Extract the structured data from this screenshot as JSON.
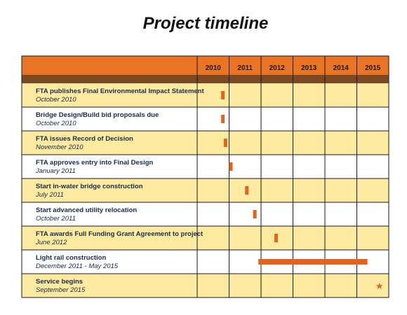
{
  "title": "Project timeline",
  "colors": {
    "header_orange": "#e97424",
    "header_brown": "#7b4a22",
    "row_highlight": "#feeba0",
    "row_plain": "#ffffff",
    "bar": "#e2641c",
    "grid": "#1a1a1a"
  },
  "chart_data": {
    "type": "table",
    "subtype": "gantt",
    "title": "Project timeline",
    "columns": [
      "2010",
      "2011",
      "2012",
      "2013",
      "2014",
      "2015"
    ],
    "rows": [
      {
        "label": "FTA publishes Final Environmental Impact Statement",
        "date_text": "October 2010",
        "start": "2010-10",
        "end": "2010-10",
        "marker": "bar",
        "highlight": true
      },
      {
        "label": "Bridge Design/Build bid proposals due",
        "date_text": "October 2010",
        "start": "2010-10",
        "end": "2010-10",
        "marker": "bar",
        "highlight": false
      },
      {
        "label": "FTA issues Record of Decision",
        "date_text": "November 2010",
        "start": "2010-11",
        "end": "2010-11",
        "marker": "bar",
        "highlight": true
      },
      {
        "label": "FTA approves entry into Final Design",
        "date_text": "January 2011",
        "start": "2011-01",
        "end": "2011-01",
        "marker": "bar",
        "highlight": false
      },
      {
        "label": "Start in-water bridge construction",
        "date_text": "July 2011",
        "start": "2011-07",
        "end": "2011-07",
        "marker": "bar",
        "highlight": true
      },
      {
        "label": "Start advanced utility relocation",
        "date_text": "October 2011",
        "start": "2011-10",
        "end": "2011-10",
        "marker": "bar",
        "highlight": false
      },
      {
        "label": "FTA awards Full Funding Grant Agreement to project",
        "date_text": "June 2012",
        "start": "2012-06",
        "end": "2012-06",
        "marker": "bar",
        "highlight": true
      },
      {
        "label": "Light rail construction",
        "date_text": "December 2011 - May 2015",
        "start": "2011-12",
        "end": "2015-05",
        "marker": "bar",
        "highlight": false
      },
      {
        "label": "Service begins",
        "date_text": "September 2015",
        "start": "2015-09",
        "end": "2015-09",
        "marker": "star",
        "highlight": true
      }
    ]
  }
}
